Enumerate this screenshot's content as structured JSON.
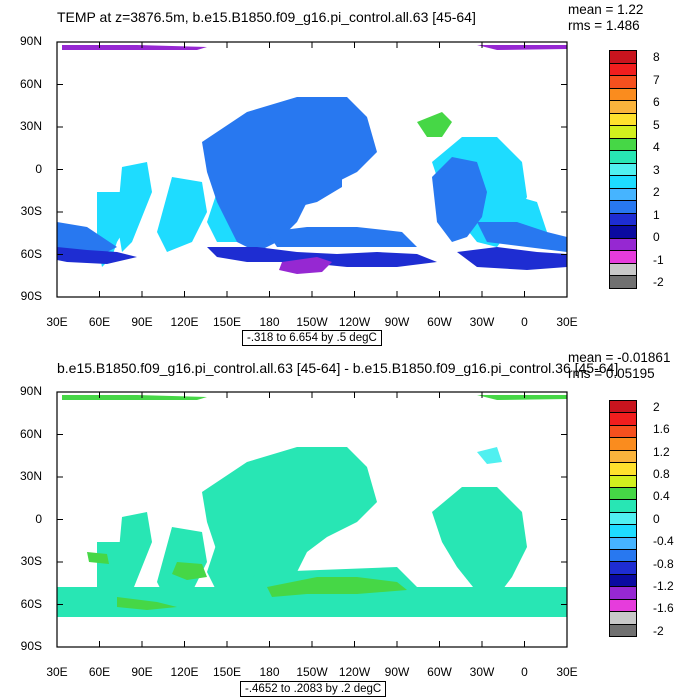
{
  "panels": [
    {
      "title": "TEMP at z=3876.5m, b.e15.B1850.f09_g16.pi_control.all.63 [45-64]",
      "mean_label": "mean = 1.22",
      "rms_label": "rms = 1.486",
      "range_label": "-.318 to 6.654 by .5 degC",
      "y_ticks": [
        "90N",
        "60N",
        "30N",
        "0",
        "30S",
        "60S",
        "90S"
      ],
      "x_ticks": [
        "30E",
        "60E",
        "90E",
        "120E",
        "150E",
        "180",
        "150W",
        "120W",
        "90W",
        "60W",
        "30W",
        "0",
        "30E"
      ],
      "colorbar_labels": [
        "8",
        "7",
        "6",
        "5",
        "4",
        "3",
        "2",
        "1",
        "0",
        "-1",
        "-2"
      ],
      "colorbar_colors": [
        "#c8141e",
        "#f01e1e",
        "#f5501e",
        "#fa8c1e",
        "#fab43c",
        "#ffe12d",
        "#d2f01e",
        "#46d746",
        "#28e6b4",
        "#50f0f0",
        "#1edcff",
        "#46b4ff",
        "#2878f0",
        "#1e2dd2",
        "#0a0aa0",
        "#9628d2",
        "#e63cdc",
        "#c8c8c8",
        "#707070"
      ]
    },
    {
      "title": "b.e15.B1850.f09_g16.pi_control.all.63 [45-64] - b.e15.B1850.f09_g16.pi_control.36 [45-64]",
      "mean_label": "mean = -0.01861",
      "rms_label": "rms = 0.05195",
      "range_label": "-.4652 to .2083 by .2 degC",
      "y_ticks": [
        "90N",
        "60N",
        "30N",
        "0",
        "30S",
        "60S",
        "90S"
      ],
      "x_ticks": [
        "30E",
        "60E",
        "90E",
        "120E",
        "150E",
        "180",
        "150W",
        "120W",
        "90W",
        "60W",
        "30W",
        "0",
        "30E"
      ],
      "colorbar_labels": [
        "2",
        "1.6",
        "1.2",
        "0.8",
        "0.4",
        "0",
        "-0.4",
        "-0.8",
        "-1.2",
        "-1.6",
        "-2"
      ],
      "colorbar_colors": [
        "#c8141e",
        "#f01e1e",
        "#f5501e",
        "#fa8c1e",
        "#fab43c",
        "#ffe12d",
        "#d2f01e",
        "#46d746",
        "#28e6b4",
        "#50f0f0",
        "#1edcff",
        "#46b4ff",
        "#2878f0",
        "#1e2dd2",
        "#0a0aa0",
        "#9628d2",
        "#e63cdc",
        "#c8c8c8",
        "#707070"
      ]
    }
  ]
}
